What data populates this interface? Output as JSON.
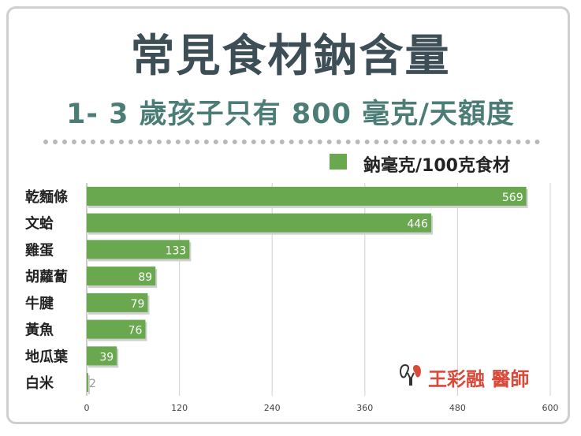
{
  "title": "常見食材鈉含量",
  "subtitle": "1- 3 歲孩子只有 800 毫克/天額度",
  "watermark": "王彩融 醫師",
  "colors": {
    "bar": "#6aa84f",
    "title": "#3e4e57",
    "subtitle": "#4b7d76",
    "watermark": "#d84a3a"
  },
  "chart_data": {
    "type": "bar",
    "orientation": "horizontal",
    "categories": [
      "乾麵條",
      "文蛤",
      "雞蛋",
      "胡蘿蔔",
      "牛腱",
      "黃魚",
      "地瓜葉",
      "白米"
    ],
    "series": [
      {
        "name": "鈉毫克/100克食材",
        "values": [
          569,
          446,
          133,
          89,
          79,
          76,
          39,
          2
        ]
      }
    ],
    "xlim": [
      0,
      600
    ],
    "xticks": [
      0,
      120,
      240,
      360,
      480,
      600
    ],
    "grid": true,
    "legend": "top-right",
    "data_labels": true
  }
}
